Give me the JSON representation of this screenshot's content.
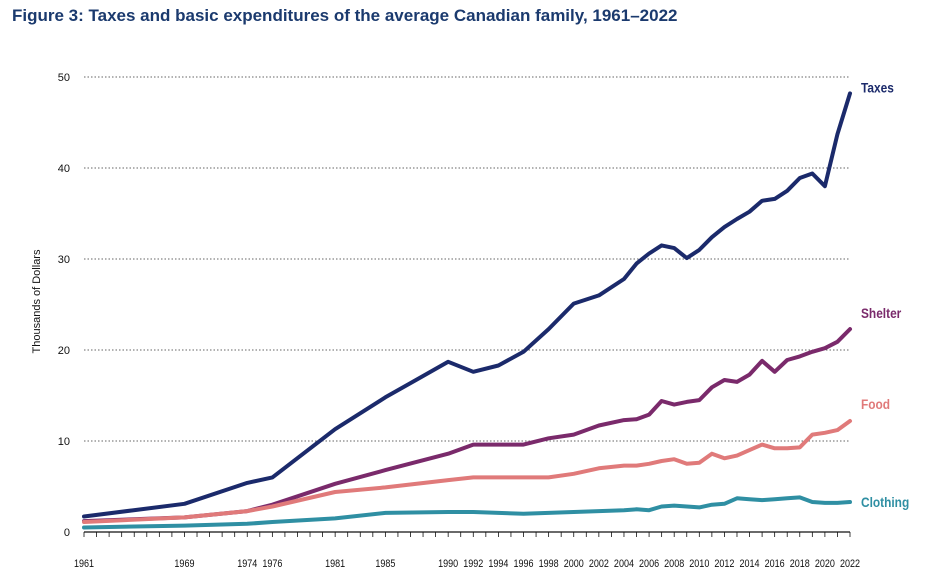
{
  "chart_data": {
    "type": "line",
    "title": "Figure 3: Taxes and basic expenditures of the average Canadian family, 1961–2022",
    "xlabel": "",
    "ylabel": "Thousands of Dollars",
    "ylim": [
      0,
      50
    ],
    "yticks": [
      "0",
      "10",
      "20",
      "30",
      "40",
      "50"
    ],
    "xlim": [
      1961,
      2022
    ],
    "xticks": [
      "1961",
      "1969",
      "1974",
      "1976",
      "1981",
      "1985",
      "1990",
      "1992",
      "1994",
      "1996",
      "1998",
      "2000",
      "2002",
      "2004",
      "2006",
      "2008",
      "2010",
      "2012",
      "2014",
      "2016",
      "2018",
      "2020",
      "2022"
    ],
    "grid": "horizontal dotted",
    "legend": "series labels at right end of lines",
    "series": [
      {
        "name": "Taxes",
        "color": "#1b2a6b",
        "points": [
          [
            1961,
            1.7
          ],
          [
            1969,
            3.1
          ],
          [
            1974,
            5.4
          ],
          [
            1976,
            6.0
          ],
          [
            1981,
            11.3
          ],
          [
            1985,
            14.8
          ],
          [
            1990,
            18.7
          ],
          [
            1992,
            17.6
          ],
          [
            1994,
            18.3
          ],
          [
            1996,
            19.8
          ],
          [
            1998,
            22.3
          ],
          [
            2000,
            25.1
          ],
          [
            2002,
            26.0
          ],
          [
            2004,
            27.8
          ],
          [
            2005,
            29.5
          ],
          [
            2006,
            30.6
          ],
          [
            2007,
            31.5
          ],
          [
            2008,
            31.2
          ],
          [
            2009,
            30.1
          ],
          [
            2010,
            31.0
          ],
          [
            2011,
            32.4
          ],
          [
            2012,
            33.5
          ],
          [
            2013,
            34.4
          ],
          [
            2014,
            35.2
          ],
          [
            2015,
            36.4
          ],
          [
            2016,
            36.6
          ],
          [
            2017,
            37.5
          ],
          [
            2018,
            38.9
          ],
          [
            2019,
            39.4
          ],
          [
            2020,
            38.0
          ],
          [
            2021,
            43.7
          ],
          [
            2022,
            48.2
          ]
        ]
      },
      {
        "name": "Shelter",
        "color": "#7a2a6b",
        "points": [
          [
            1961,
            1.2
          ],
          [
            1969,
            1.6
          ],
          [
            1974,
            2.3
          ],
          [
            1976,
            3.0
          ],
          [
            1981,
            5.3
          ],
          [
            1985,
            6.8
          ],
          [
            1990,
            8.6
          ],
          [
            1992,
            9.6
          ],
          [
            1994,
            9.6
          ],
          [
            1996,
            9.6
          ],
          [
            1998,
            10.3
          ],
          [
            2000,
            10.7
          ],
          [
            2002,
            11.7
          ],
          [
            2004,
            12.3
          ],
          [
            2005,
            12.4
          ],
          [
            2006,
            12.9
          ],
          [
            2007,
            14.4
          ],
          [
            2008,
            14.0
          ],
          [
            2009,
            14.3
          ],
          [
            2010,
            14.5
          ],
          [
            2011,
            15.9
          ],
          [
            2012,
            16.7
          ],
          [
            2013,
            16.5
          ],
          [
            2014,
            17.3
          ],
          [
            2015,
            18.8
          ],
          [
            2016,
            17.6
          ],
          [
            2017,
            18.9
          ],
          [
            2018,
            19.3
          ],
          [
            2019,
            19.8
          ],
          [
            2020,
            20.2
          ],
          [
            2021,
            20.9
          ],
          [
            2022,
            22.3
          ]
        ]
      },
      {
        "name": "Food",
        "color": "#e07a7a",
        "points": [
          [
            1961,
            1.1
          ],
          [
            1969,
            1.6
          ],
          [
            1974,
            2.3
          ],
          [
            1976,
            2.8
          ],
          [
            1981,
            4.4
          ],
          [
            1985,
            4.9
          ],
          [
            1990,
            5.7
          ],
          [
            1992,
            6.0
          ],
          [
            1994,
            6.0
          ],
          [
            1996,
            6.0
          ],
          [
            1998,
            6.0
          ],
          [
            2000,
            6.4
          ],
          [
            2002,
            7.0
          ],
          [
            2004,
            7.3
          ],
          [
            2005,
            7.3
          ],
          [
            2006,
            7.5
          ],
          [
            2007,
            7.8
          ],
          [
            2008,
            8.0
          ],
          [
            2009,
            7.5
          ],
          [
            2010,
            7.6
          ],
          [
            2011,
            8.6
          ],
          [
            2012,
            8.1
          ],
          [
            2013,
            8.4
          ],
          [
            2014,
            9.0
          ],
          [
            2015,
            9.6
          ],
          [
            2016,
            9.2
          ],
          [
            2017,
            9.2
          ],
          [
            2018,
            9.3
          ],
          [
            2019,
            10.7
          ],
          [
            2020,
            10.9
          ],
          [
            2021,
            11.2
          ],
          [
            2022,
            12.2
          ]
        ]
      },
      {
        "name": "Clothing",
        "color": "#2f8fa3",
        "points": [
          [
            1961,
            0.5
          ],
          [
            1969,
            0.7
          ],
          [
            1974,
            0.9
          ],
          [
            1976,
            1.1
          ],
          [
            1981,
            1.5
          ],
          [
            1985,
            2.1
          ],
          [
            1990,
            2.2
          ],
          [
            1992,
            2.2
          ],
          [
            1994,
            2.1
          ],
          [
            1996,
            2.0
          ],
          [
            1998,
            2.1
          ],
          [
            2000,
            2.2
          ],
          [
            2002,
            2.3
          ],
          [
            2004,
            2.4
          ],
          [
            2005,
            2.5
          ],
          [
            2006,
            2.4
          ],
          [
            2007,
            2.8
          ],
          [
            2008,
            2.9
          ],
          [
            2009,
            2.8
          ],
          [
            2010,
            2.7
          ],
          [
            2011,
            3.0
          ],
          [
            2012,
            3.1
          ],
          [
            2013,
            3.7
          ],
          [
            2014,
            3.6
          ],
          [
            2015,
            3.5
          ],
          [
            2016,
            3.6
          ],
          [
            2017,
            3.7
          ],
          [
            2018,
            3.8
          ],
          [
            2019,
            3.3
          ],
          [
            2020,
            3.2
          ],
          [
            2021,
            3.2
          ],
          [
            2022,
            3.3
          ]
        ]
      }
    ]
  }
}
